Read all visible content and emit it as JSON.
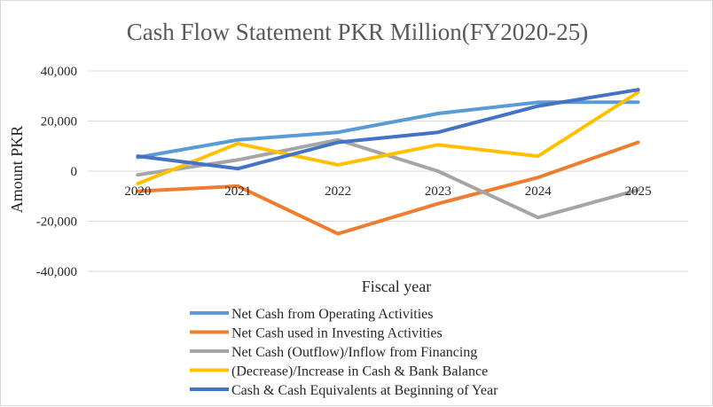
{
  "chart_data": {
    "type": "line",
    "title": "Cash Flow Statement PKR Million(FY2020-25)",
    "xlabel": "Fiscal year",
    "ylabel": "Amount PKR",
    "categories": [
      "2020",
      "2021",
      "2022",
      "2023",
      "2024",
      "2025"
    ],
    "ylim": [
      -40000,
      40000
    ],
    "yticks": [
      40000,
      20000,
      0,
      -20000,
      -40000
    ],
    "ytick_labels": [
      "40,000",
      "20,000",
      "0",
      "-20,000",
      "-40,000"
    ],
    "grid": true,
    "legend_position": "bottom",
    "series": [
      {
        "name": "Net Cash from Operating Activities",
        "color": "#5b9bd5",
        "values": [
          5500,
          12500,
          15500,
          23000,
          27500,
          27500
        ]
      },
      {
        "name": "Net Cash used in Investing Activities",
        "color": "#ed7d31",
        "values": [
          -8000,
          -6000,
          -25000,
          -13000,
          -2500,
          11500
        ]
      },
      {
        "name": "Net Cash (Outflow)/Inflow from Financing",
        "color": "#a5a5a5",
        "values": [
          -1500,
          4500,
          12500,
          0,
          -18500,
          -7500
        ]
      },
      {
        "name": "(Decrease)/Increase in Cash & Bank Balance",
        "color": "#ffc000",
        "values": [
          -5000,
          11000,
          2500,
          10500,
          6000,
          31500
        ]
      },
      {
        "name": "Cash & Cash Equivalents at Beginning of Year",
        "color": "#4472c4",
        "values": [
          6000,
          1000,
          11500,
          15500,
          26000,
          32500
        ]
      }
    ]
  }
}
